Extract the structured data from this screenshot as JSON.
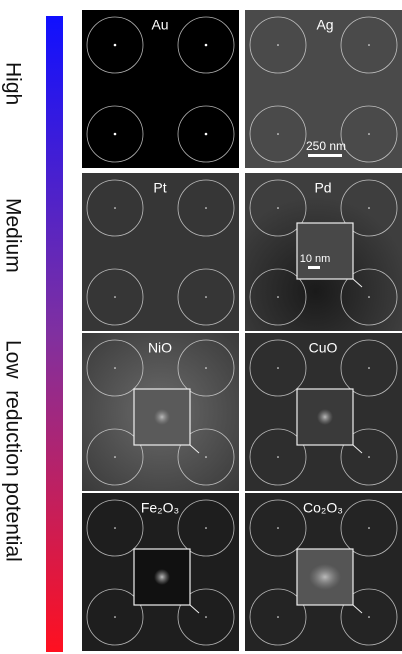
{
  "scale": {
    "labels": [
      "High",
      "Medium",
      "Low  reduction potential"
    ]
  },
  "panels": [
    {
      "label": "Au"
    },
    {
      "label": "Ag",
      "scale_bar": "250 nm"
    },
    {
      "label": "Pt"
    },
    {
      "label": "Pd",
      "scale_bar": "10 nm"
    },
    {
      "label": "NiO"
    },
    {
      "label": "CuO"
    },
    {
      "label": "Fe₂O₃"
    },
    {
      "label": "Co₂O₃"
    }
  ]
}
